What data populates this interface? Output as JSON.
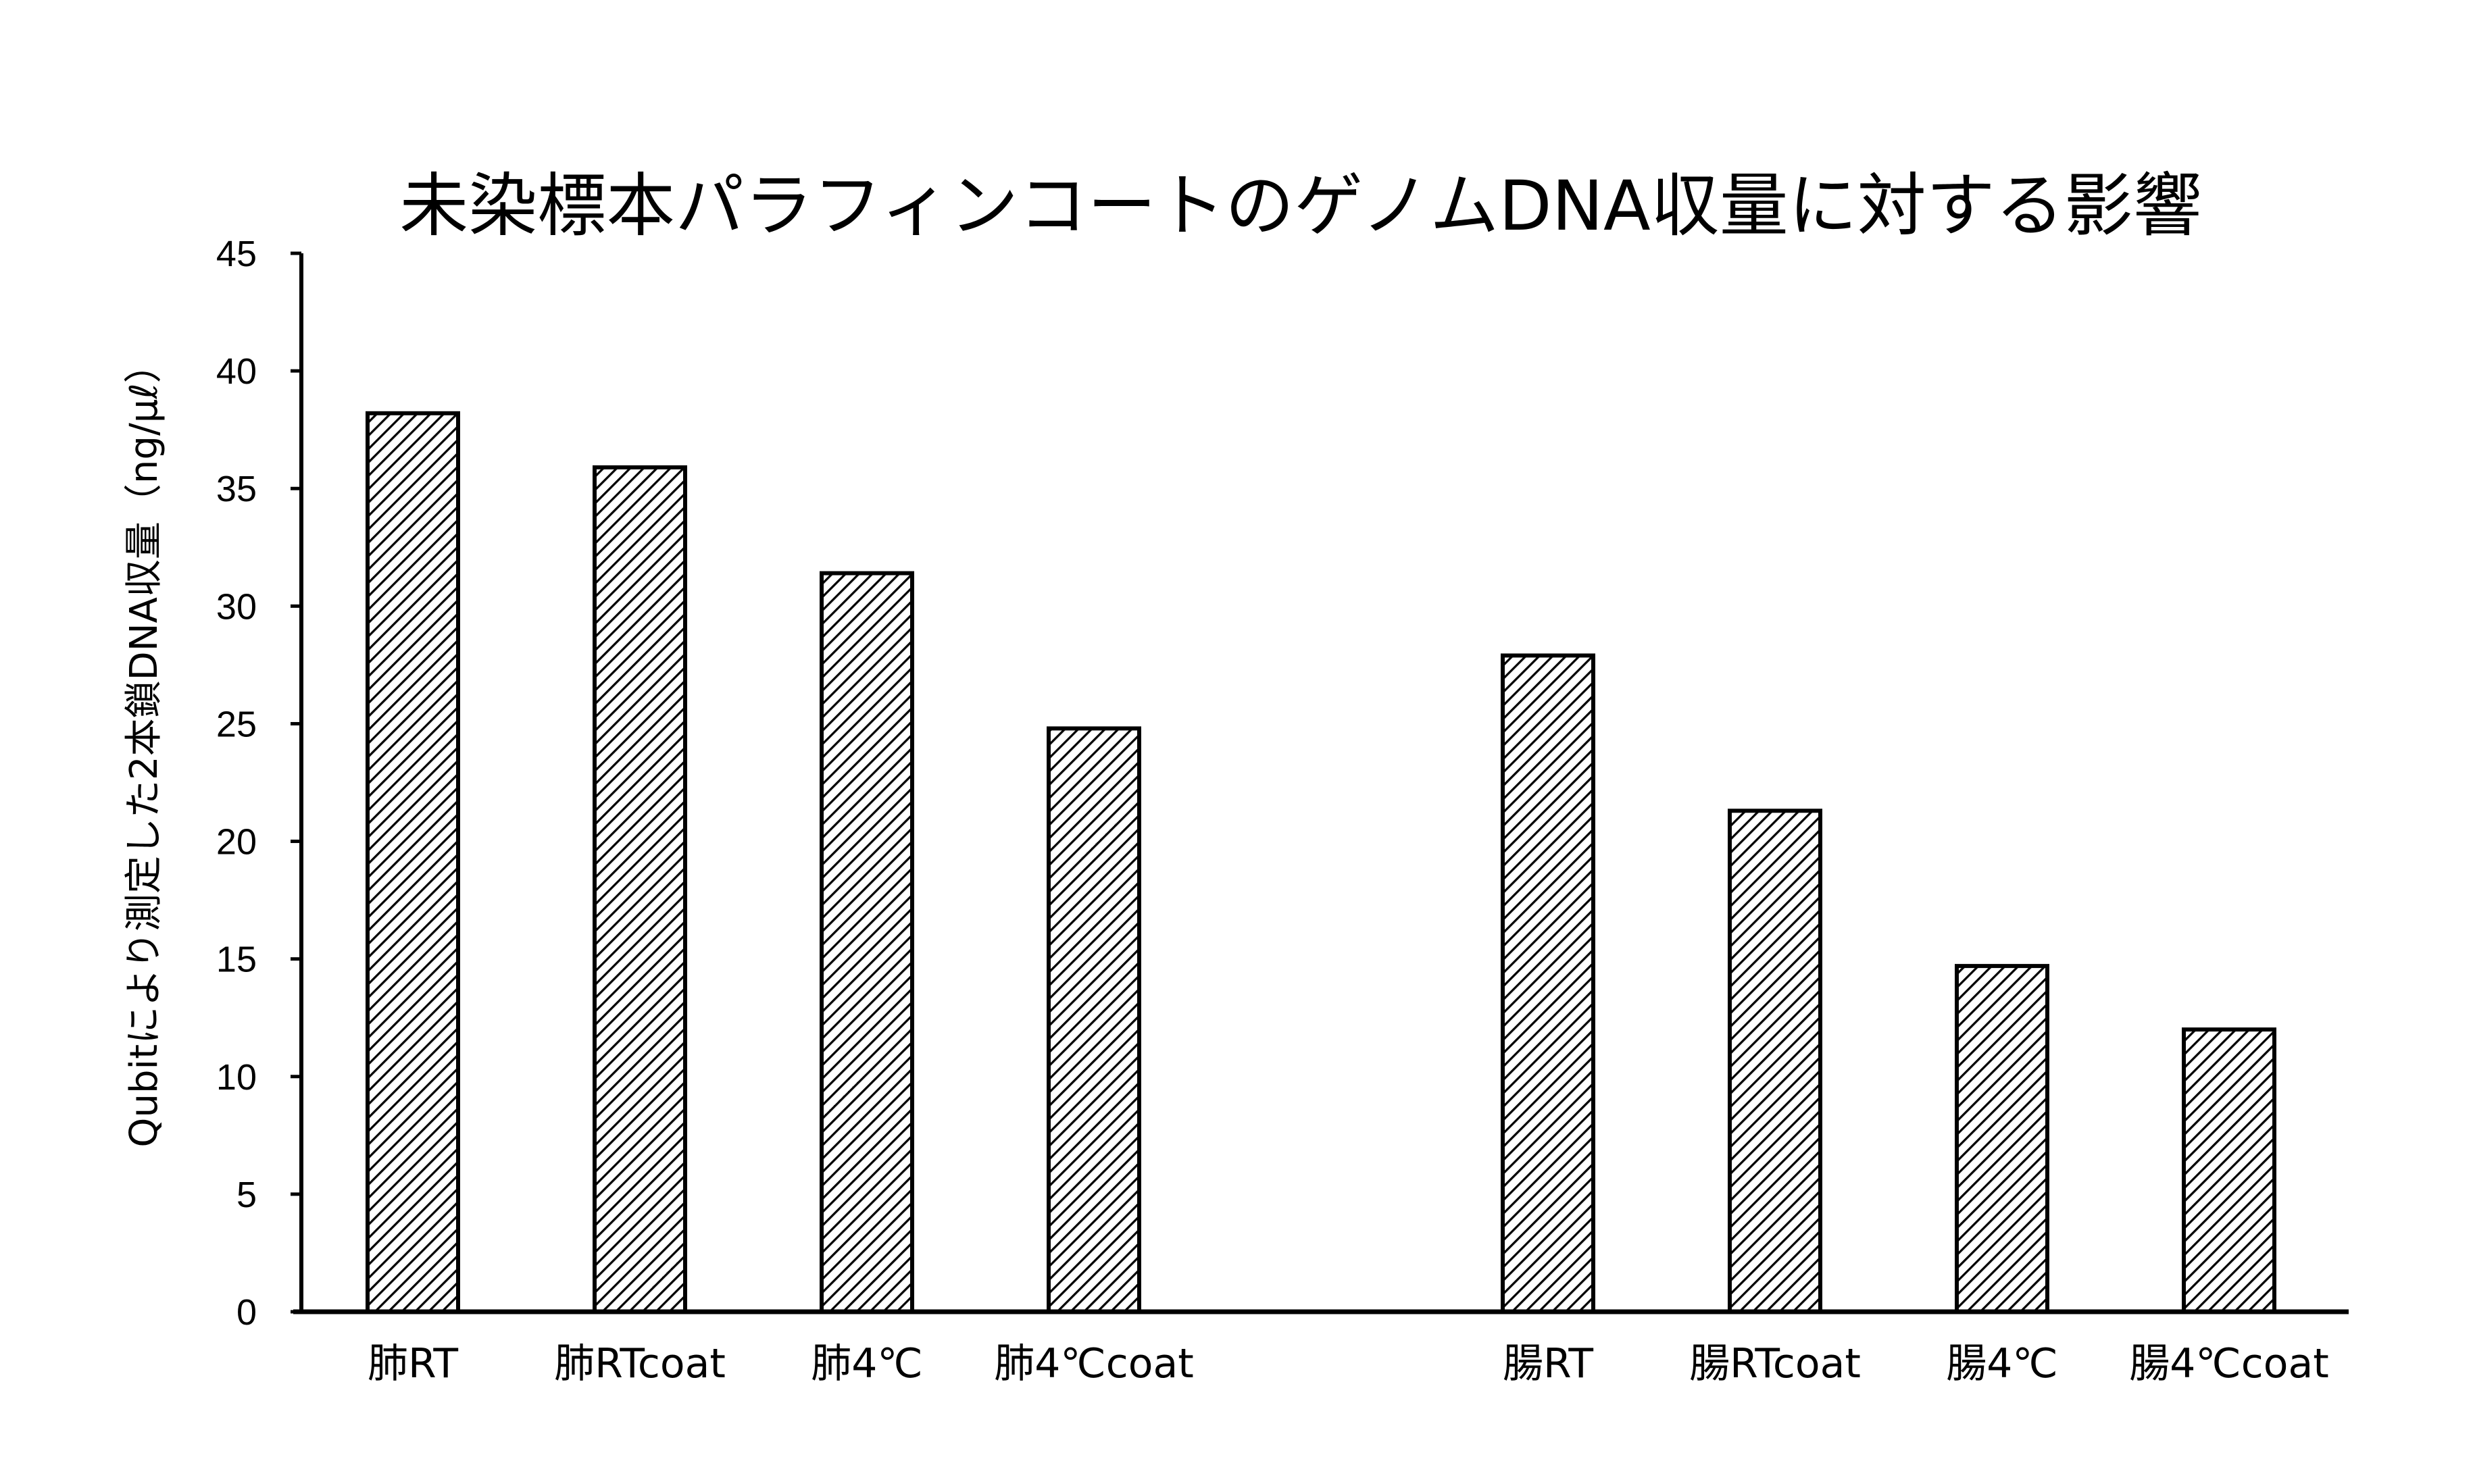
{
  "chart_data": {
    "type": "bar",
    "title": "未染標本パラフィンコートのゲノムDNA収量に対する影響",
    "ylabel": "Qubitにより測定した2本鎖DNA収量（ng/μℓ）",
    "xlabel": "",
    "categories": [
      "肺RT",
      "肺RTcoat",
      "肺4℃",
      "肺4℃coat",
      "腸RT",
      "腸RTcoat",
      "腸4℃",
      "腸4℃coat"
    ],
    "category_groups": [
      [
        0,
        1,
        2,
        3
      ],
      [
        4,
        5,
        6,
        7
      ]
    ],
    "values": [
      38.2,
      35.9,
      31.4,
      24.8,
      27.9,
      21.3,
      14.7,
      12.0
    ],
    "ylim": [
      0,
      45
    ],
    "yticks": [
      0,
      5,
      10,
      15,
      20,
      25,
      30,
      35,
      40,
      45
    ],
    "grid": false,
    "legend": "none",
    "bar_fill": "diagonal-hatch",
    "colors": {
      "bar_stroke": "#000000",
      "hatch": "#000000",
      "background": "#ffffff",
      "axis": "#000000",
      "text": "#000000"
    }
  }
}
